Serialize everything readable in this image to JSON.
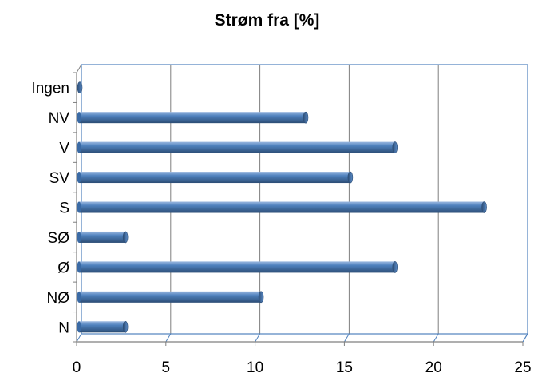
{
  "chart_data": {
    "type": "bar",
    "orientation": "horizontal",
    "title": "Strøm fra [%]",
    "xlabel": "",
    "ylabel": "",
    "categories": [
      "N",
      "NØ",
      "Ø",
      "SØ",
      "S",
      "SV",
      "V",
      "NV",
      "Ingen"
    ],
    "values": [
      2.6,
      10.2,
      17.7,
      2.6,
      22.7,
      15.2,
      17.7,
      12.7,
      0
    ],
    "xlim": [
      0,
      25
    ],
    "xticks": [
      0,
      5,
      10,
      15,
      20,
      25
    ],
    "grid": true,
    "legend": "none",
    "bar_color": "#4f81bd",
    "grid_color": "#7f7f7f",
    "wall_color": "#4f81bd"
  }
}
